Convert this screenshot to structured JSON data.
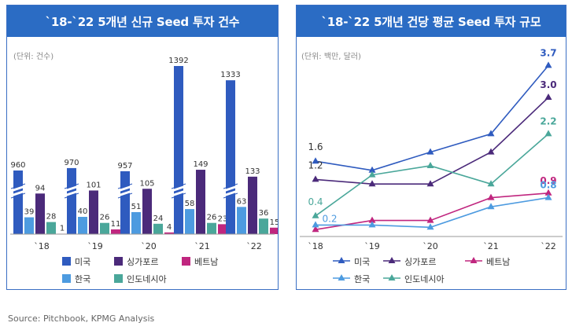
{
  "left": {
    "title": "`18-`22 5개년 신규 Seed 투자 건수",
    "unit": "(단위: 건수)"
  },
  "right": {
    "title": "`18-`22 5개년 건당 평균 Seed 투자 규모",
    "unit": "(단위: 백만, 달러)"
  },
  "source": "Source: Pitchbook, KPMG Analysis",
  "colors": {
    "us": "#2f5bbf",
    "singapore": "#4b2a7a",
    "vietnam": "#c0267f",
    "korea": "#4d9be0",
    "indonesia": "#4aa79a"
  },
  "chart_data": [
    {
      "type": "bar",
      "categories": [
        "`18",
        "`19",
        "`20",
        "`21",
        "`22"
      ],
      "axis_break": true,
      "series": [
        {
          "name": "미국",
          "color": "#2f5bbf",
          "values": [
            960,
            970,
            957,
            1392,
            1333
          ]
        },
        {
          "name": "한국",
          "color": "#4d9be0",
          "values": [
            39,
            40,
            51,
            58,
            63
          ]
        },
        {
          "name": "싱가포르",
          "color": "#4b2a7a",
          "values": [
            94,
            101,
            105,
            149,
            133
          ]
        },
        {
          "name": "인도네시아",
          "color": "#4aa79a",
          "values": [
            28,
            26,
            24,
            26,
            36
          ]
        },
        {
          "name": "베트남",
          "color": "#c0267f",
          "values": [
            1,
            11,
            4,
            23,
            15
          ]
        }
      ],
      "legend": [
        "미국",
        "싱가포르",
        "베트남",
        "한국",
        "인도네시아"
      ]
    },
    {
      "type": "line",
      "categories": [
        "`18",
        "`19",
        "`20",
        "`21",
        "`22"
      ],
      "series": [
        {
          "name": "미국",
          "color": "#2f5bbf",
          "values": [
            1.6,
            1.4,
            1.8,
            2.2,
            3.7
          ]
        },
        {
          "name": "싱가포르",
          "color": "#4b2a7a",
          "values": [
            1.2,
            1.1,
            1.1,
            1.8,
            3.0
          ]
        },
        {
          "name": "베트남",
          "color": "#c0267f",
          "values": [
            0.1,
            0.3,
            0.3,
            0.8,
            0.9
          ]
        },
        {
          "name": "한국",
          "color": "#4d9be0",
          "values": [
            0.2,
            0.2,
            0.15,
            0.6,
            0.8
          ]
        },
        {
          "name": "인도네시아",
          "color": "#4aa79a",
          "values": [
            0.4,
            1.3,
            1.5,
            1.1,
            2.2
          ]
        }
      ],
      "endpoint_labels": {
        "미국": "3.7",
        "싱가포르": "3.0",
        "인도네시아": "2.2",
        "베트남": "0.9",
        "한국": "0.8"
      },
      "start_labels": {
        "미국": "1.6",
        "싱가포르": "1.2",
        "인도네시아": "0.4",
        "한국": "0.2"
      },
      "legend": [
        "미국",
        "싱가포르",
        "베트남",
        "한국",
        "인도네시아"
      ]
    }
  ]
}
